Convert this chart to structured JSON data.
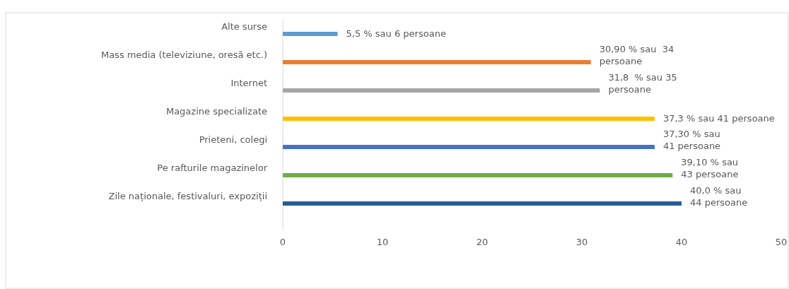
{
  "chart_data": {
    "type": "bar",
    "orientation": "horizontal",
    "categories": [
      "Alte surse",
      "Mass media (televiziune, oresă etc.)",
      "Internet",
      "Magazine specializate",
      "Prieteni, colegi",
      "Pe rafturile magazinelor",
      "Zile naționale, festivaluri, expoziții"
    ],
    "values": [
      5.5,
      30.9,
      31.8,
      37.3,
      37.3,
      39.1,
      40.0
    ],
    "colors": [
      "#5b9bd5",
      "#ed7d31",
      "#a5a5a5",
      "#ffc000",
      "#4472c4",
      "#70ad47",
      "#255e91"
    ],
    "value_labels": [
      "5,5 % sau 6 persoane",
      "30,90 % sau  34\npersoane",
      "31,8  % sau 35\npersoane",
      "37,3 % sau 41 persoane",
      "37,30 % sau\n41 persoane",
      "39,10 % sau\n43 persoane",
      "40,0 % sau\n44 persoane"
    ],
    "xlim": [
      0,
      50
    ],
    "xticks": [
      0,
      10,
      20,
      30,
      40,
      50
    ]
  }
}
